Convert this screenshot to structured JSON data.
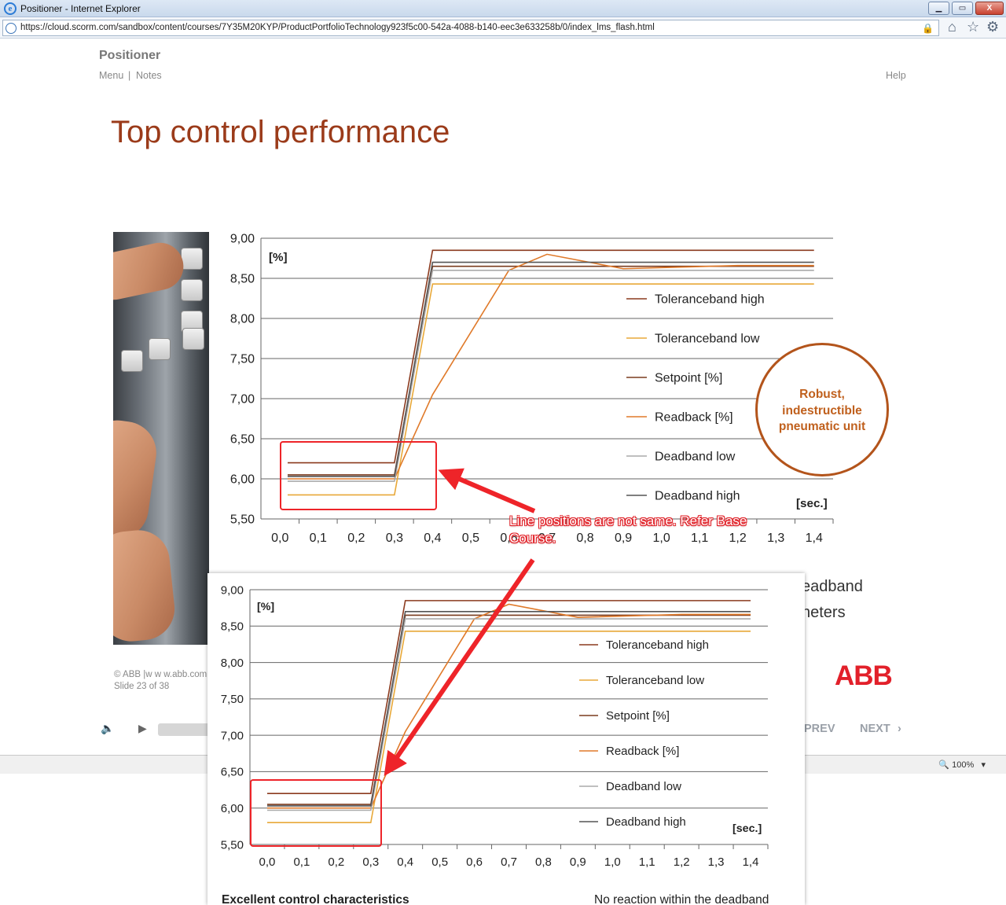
{
  "window": {
    "title": "Positioner - Internet Explorer",
    "url": "https://cloud.scorm.com/sandbox/content/courses/7Y35M20KYP/ProductPortfolioTechnology923f5c00-542a-4088-b140-eec3e633258b/0/index_lms_flash.html",
    "minimize": "▁",
    "restore": "▭",
    "close": "X"
  },
  "toolbar": {
    "home_icon": "home-icon",
    "favorites_icon": "star-icon",
    "tools_icon": "gear-icon"
  },
  "header": {
    "app_name": "Positioner",
    "menu": "Menu",
    "notes": "Notes",
    "separator": "|",
    "help": "Help"
  },
  "slide": {
    "title": "Top control performance",
    "circle_text": [
      "Robust,",
      "indestructible",
      "pneumatic unit"
    ],
    "side_text_1": "eadband",
    "side_text_2": "neters",
    "copyright": "© ABB |w w w.abb.com",
    "slide_counter": "Slide 23 of 38",
    "logo": "ABB"
  },
  "player": {
    "prev": "PREV",
    "next": "NEXT",
    "mute_icon": "speaker-icon",
    "play_icon": "play-icon"
  },
  "annotation": {
    "text": "Line positions are not same. Refer Base Course."
  },
  "statusbar": {
    "zoom": "100%"
  },
  "overlay": {
    "bottom_left_text": "Excellent control characteristics",
    "bottom_right_text": "No reaction within the deadband"
  },
  "chart_data": [
    {
      "type": "line",
      "x": [
        0.0,
        0.1,
        0.2,
        0.3,
        0.4,
        0.5,
        0.6,
        0.7,
        0.8,
        0.9,
        1.0,
        1.1,
        1.2,
        1.3,
        1.4
      ],
      "x_tick_labels": [
        "0,0",
        "0,1",
        "0,2",
        "0,3",
        "0,4",
        "0,5",
        "0,6",
        "0,7",
        "0,8",
        "0,9",
        "1,0",
        "1,1",
        "1,2",
        "1,3",
        "1,4"
      ],
      "y_tick_labels": [
        "9,00",
        "8,50",
        "8,00",
        "7,50",
        "7,00",
        "6,50",
        "6,00",
        "5,50"
      ],
      "ylim": [
        5.5,
        9.0
      ],
      "xlim": [
        -0.05,
        1.45
      ],
      "ylabel": "[%]",
      "xlabel": "[sec.]",
      "grid": "horizontal",
      "legend_position": "right",
      "series": [
        {
          "name": "Toleranceband high",
          "color": "#8b3a1e",
          "points": [
            [
              0.02,
              6.2
            ],
            [
              0.3,
              6.2
            ],
            [
              0.4,
              8.85
            ],
            [
              1.4,
              8.85
            ]
          ]
        },
        {
          "name": "Toleranceband low",
          "color": "#e8a838",
          "points": [
            [
              0.02,
              5.8
            ],
            [
              0.3,
              5.8
            ],
            [
              0.4,
              8.43
            ],
            [
              1.4,
              8.43
            ]
          ]
        },
        {
          "name": "Setpoint [%]",
          "color": "#7a3b1e",
          "points": [
            [
              0.02,
              6.05
            ],
            [
              0.3,
              6.05
            ],
            [
              0.4,
              8.65
            ],
            [
              1.4,
              8.65
            ]
          ]
        },
        {
          "name": "Readback [%]",
          "color": "#e07a2a",
          "points": [
            [
              0.02,
              6.0
            ],
            [
              0.3,
              6.0
            ],
            [
              0.4,
              7.05
            ],
            [
              0.6,
              8.6
            ],
            [
              0.7,
              8.8
            ],
            [
              0.9,
              8.62
            ],
            [
              1.2,
              8.66
            ],
            [
              1.4,
              8.66
            ]
          ]
        },
        {
          "name": "Deadband low",
          "color": "#aaaaaa",
          "points": [
            [
              0.02,
              5.97
            ],
            [
              0.3,
              5.97
            ],
            [
              0.4,
              8.6
            ],
            [
              1.4,
              8.6
            ]
          ]
        },
        {
          "name": "Deadband high",
          "color": "#555555",
          "points": [
            [
              0.02,
              6.03
            ],
            [
              0.3,
              6.03
            ],
            [
              0.4,
              8.7
            ],
            [
              1.4,
              8.7
            ]
          ]
        }
      ]
    },
    {
      "type": "line",
      "x": [
        0.0,
        0.1,
        0.2,
        0.3,
        0.4,
        0.5,
        0.6,
        0.7,
        0.8,
        0.9,
        1.0,
        1.1,
        1.2,
        1.3,
        1.4
      ],
      "x_tick_labels": [
        "0,0",
        "0,1",
        "0,2",
        "0,3",
        "0,4",
        "0,5",
        "0,6",
        "0,7",
        "0,8",
        "0,9",
        "1,0",
        "1,1",
        "1,2",
        "1,3",
        "1,4"
      ],
      "y_tick_labels": [
        "9,00",
        "8,50",
        "8,00",
        "7,50",
        "7,00",
        "6,50",
        "6,00",
        "5,50"
      ],
      "ylim": [
        5.5,
        9.0
      ],
      "xlim": [
        -0.05,
        1.45
      ],
      "ylabel": "[%]",
      "xlabel": "[sec.]",
      "grid": "horizontal",
      "legend_position": "right",
      "series": [
        {
          "name": "Toleranceband high",
          "color": "#8b3a1e",
          "points": [
            [
              0.0,
              6.2
            ],
            [
              0.3,
              6.2
            ],
            [
              0.4,
              8.85
            ],
            [
              1.4,
              8.85
            ]
          ]
        },
        {
          "name": "Toleranceband low",
          "color": "#e8a838",
          "points": [
            [
              0.0,
              5.8
            ],
            [
              0.3,
              5.8
            ],
            [
              0.4,
              8.43
            ],
            [
              1.4,
              8.43
            ]
          ]
        },
        {
          "name": "Setpoint [%]",
          "color": "#7a3b1e",
          "points": [
            [
              0.0,
              6.05
            ],
            [
              0.3,
              6.05
            ],
            [
              0.4,
              8.65
            ],
            [
              1.4,
              8.65
            ]
          ]
        },
        {
          "name": "Readback [%]",
          "color": "#e07a2a",
          "points": [
            [
              0.0,
              6.0
            ],
            [
              0.3,
              6.0
            ],
            [
              0.4,
              7.05
            ],
            [
              0.6,
              8.6
            ],
            [
              0.7,
              8.8
            ],
            [
              0.9,
              8.62
            ],
            [
              1.2,
              8.66
            ],
            [
              1.4,
              8.66
            ]
          ]
        },
        {
          "name": "Deadband low",
          "color": "#aaaaaa",
          "points": [
            [
              0.0,
              5.97
            ],
            [
              0.3,
              5.97
            ],
            [
              0.4,
              8.6
            ],
            [
              1.4,
              8.6
            ]
          ]
        },
        {
          "name": "Deadband high",
          "color": "#555555",
          "points": [
            [
              0.0,
              6.03
            ],
            [
              0.3,
              6.03
            ],
            [
              0.4,
              8.7
            ],
            [
              1.4,
              8.7
            ]
          ]
        }
      ]
    }
  ]
}
